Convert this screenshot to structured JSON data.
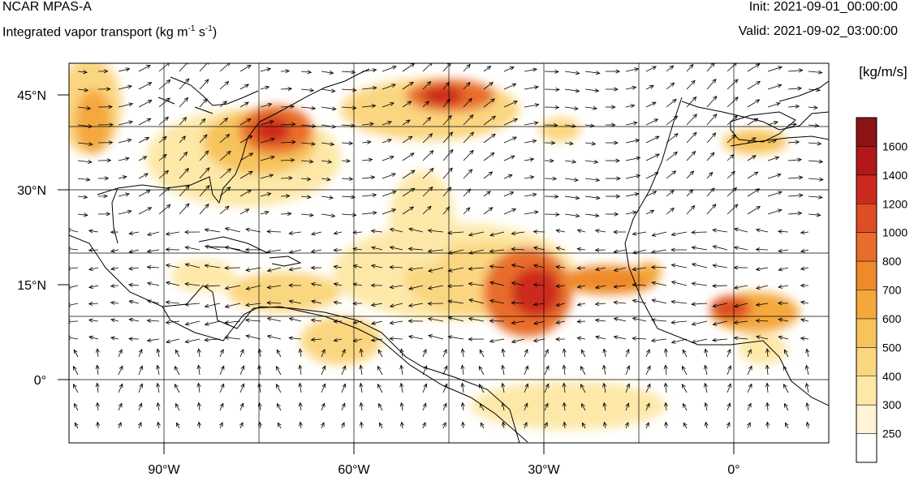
{
  "header": {
    "model": "NCAR MPAS-A",
    "field_prefix": "Integrated vapor transport (kg m",
    "field_exp1": "-1",
    "field_mid": " s",
    "field_exp2": "-1",
    "field_suffix": ")",
    "init": "Init: 2021-09-01_00:00:00",
    "valid": "Valid: 2021-09-02_03:00:00"
  },
  "map": {
    "lon_range": [
      -105,
      15
    ],
    "lat_range": [
      -10,
      50
    ],
    "lon_ticks": [
      {
        "value": -90,
        "label": "90°W"
      },
      {
        "value": -60,
        "label": "60°W"
      },
      {
        "value": -30,
        "label": "30°W"
      },
      {
        "value": 0,
        "label": "0°"
      }
    ],
    "lat_ticks": [
      {
        "value": 45,
        "label": "45°N"
      },
      {
        "value": 30,
        "label": "30°N"
      },
      {
        "value": 15,
        "label": "15°N"
      },
      {
        "value": 0,
        "label": "0°"
      }
    ],
    "grid_lon": [
      -90,
      -75,
      -60,
      -45,
      -30,
      -15,
      0
    ],
    "grid_lat": [
      40,
      30,
      20,
      10,
      0
    ],
    "colors": {
      "c250": "#fff4d6",
      "c300": "#fde8a8",
      "c400": "#fbd680",
      "c500": "#f7c35c",
      "c600": "#f4a83c",
      "c700": "#ef8a2c",
      "c800": "#e86d2a",
      "c1000": "#de4e24",
      "c1200": "#cc2a1e",
      "c1400": "#b0181a",
      "c1600": "#8c1414"
    }
  },
  "colorbar": {
    "unit": "[kg/m/s]",
    "levels": [
      "250",
      "300",
      "400",
      "500",
      "600",
      "700",
      "800",
      "1000",
      "1200",
      "1400",
      "1600"
    ],
    "colors": [
      "#ffffff",
      "#fff4d6",
      "#fde8a8",
      "#fbd680",
      "#f7c35c",
      "#f4a83c",
      "#ef8a2c",
      "#e86d2a",
      "#de4e24",
      "#cc2a1e",
      "#b0181a",
      "#8c1414"
    ]
  }
}
